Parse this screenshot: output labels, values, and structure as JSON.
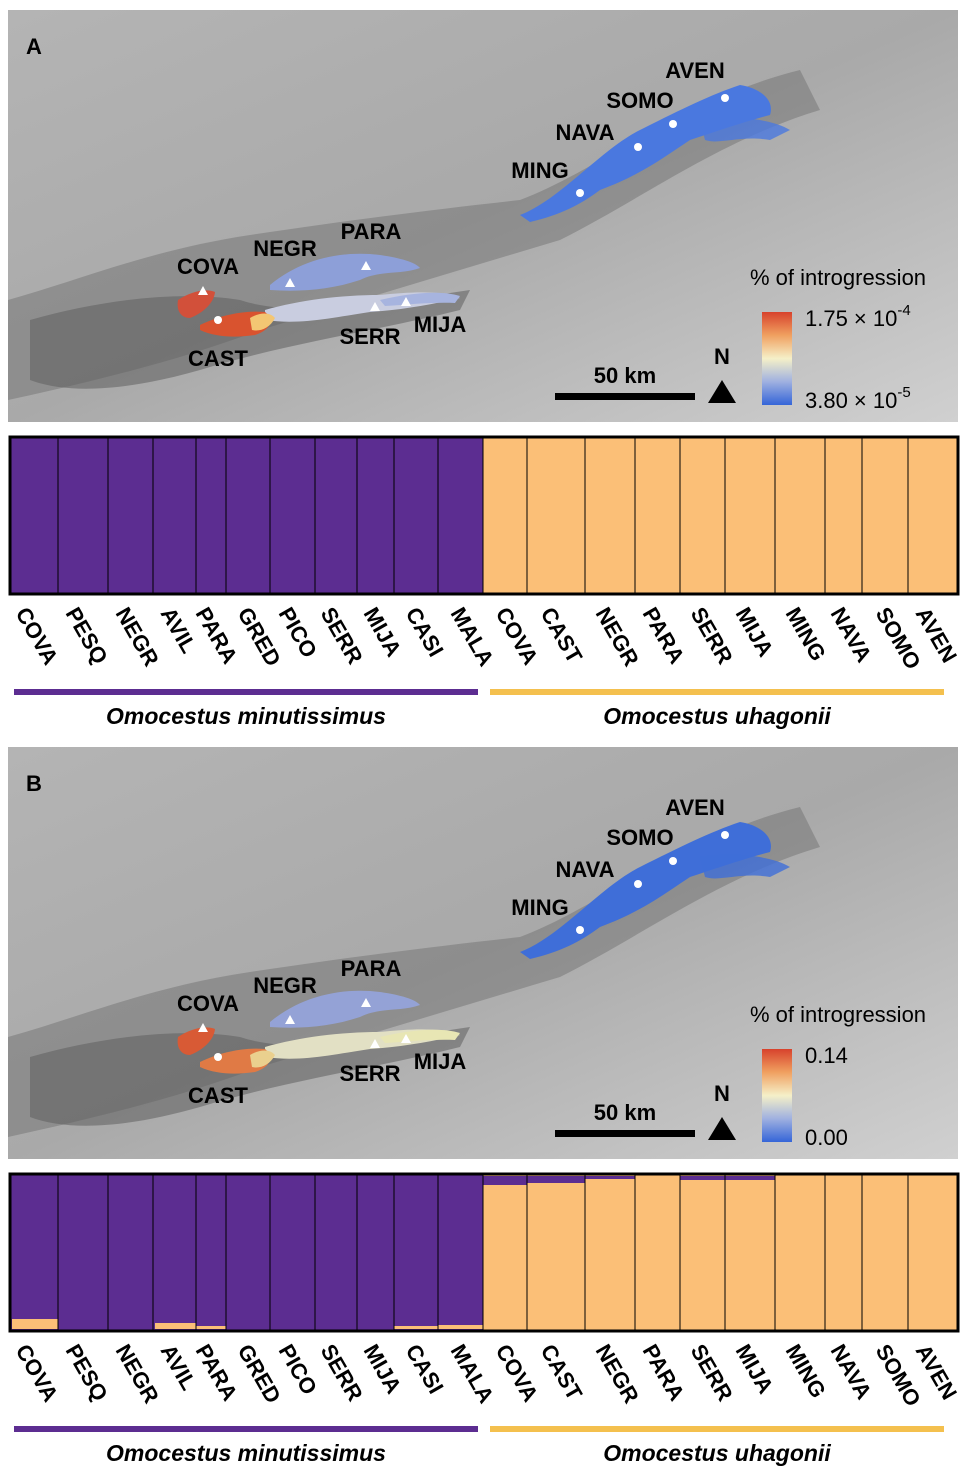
{
  "panels": [
    {
      "label": "A",
      "sites": [
        "AVEN",
        "SOMO",
        "NAVA",
        "MING",
        "PARA",
        "NEGR",
        "COVA",
        "CAST",
        "SERR",
        "MIJA"
      ],
      "legend": {
        "title": "% of introgression",
        "max": {
          "base": "1.75 × 10",
          "exponent": "-4"
        },
        "min": {
          "base": "3.80 × 10",
          "exponent": "-5"
        }
      },
      "scale": "50 km",
      "north": "N",
      "populations": [
        "COVA",
        "PESQ",
        "NEGR",
        "AVIL",
        "PARA",
        "GRED",
        "PICO",
        "SERR",
        "MIJA",
        "CASI",
        "MALA",
        "COVA",
        "CAST",
        "NEGR",
        "PARA",
        "SERR",
        "MIJA",
        "MING",
        "NAVA",
        "SOMO",
        "AVEN"
      ],
      "species": [
        "Omocestus minutissimus",
        "Omocestus uhagonii"
      ]
    },
    {
      "label": "B",
      "sites": [
        "AVEN",
        "SOMO",
        "NAVA",
        "MING",
        "PARA",
        "NEGR",
        "COVA",
        "CAST",
        "SERR",
        "MIJA"
      ],
      "legend": {
        "title": "% of introgression",
        "max": {
          "base": "0.14"
        },
        "min": {
          "base": "0.00"
        }
      },
      "scale": "50 km",
      "north": "N",
      "populations": [
        "COVA",
        "PESQ",
        "NEGR",
        "AVIL",
        "PARA",
        "GRED",
        "PICO",
        "SERR",
        "MIJA",
        "CASI",
        "MALA",
        "COVA",
        "CAST",
        "NEGR",
        "PARA",
        "SERR",
        "MIJA",
        "MING",
        "NAVA",
        "SOMO",
        "AVEN"
      ],
      "species": [
        "Omocestus minutissimus",
        "Omocestus uhagonii"
      ]
    }
  ]
}
